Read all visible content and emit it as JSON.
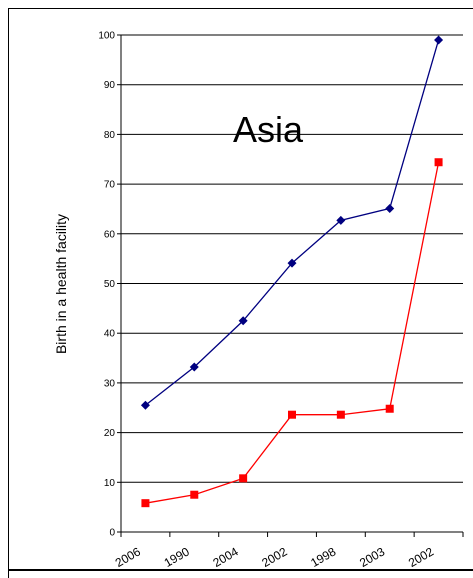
{
  "chart_data": {
    "type": "line",
    "title": "Asia",
    "xlabel": "",
    "ylabel": "Birth in a health facility",
    "ylim": [
      0,
      100
    ],
    "yticks": [
      0,
      10,
      20,
      30,
      40,
      50,
      60,
      70,
      80,
      90,
      100
    ],
    "categories": [
      "2006",
      "1990",
      "2004",
      "2002",
      "1998",
      "2003",
      "2002"
    ],
    "grid": true,
    "legend": "none",
    "series": [
      {
        "color": "#000080",
        "marker": "diamond",
        "values": [
          25.5,
          33.2,
          42.5,
          54.1,
          62.7,
          65.1,
          99.0
        ]
      },
      {
        "color": "#ff0000",
        "marker": "square",
        "values": [
          5.8,
          7.5,
          10.8,
          23.6,
          23.6,
          24.8,
          74.4
        ]
      }
    ]
  }
}
